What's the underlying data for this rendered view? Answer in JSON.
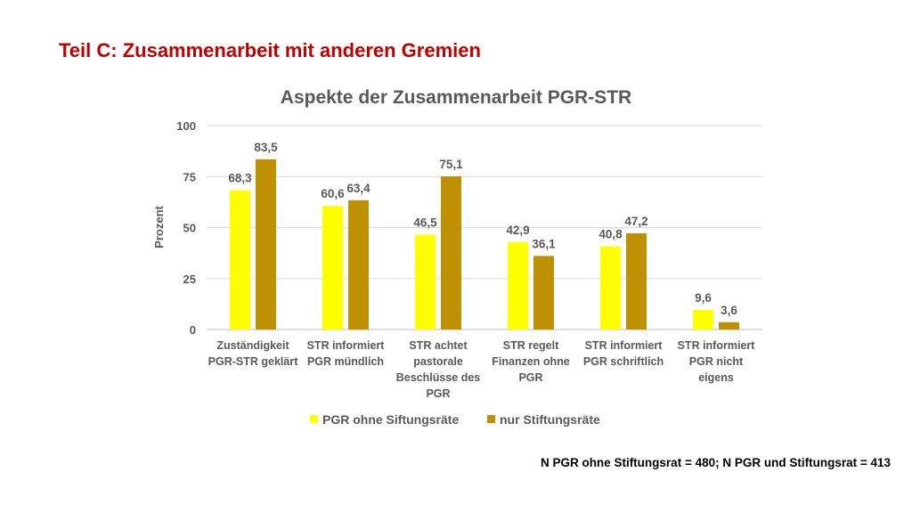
{
  "slide": {
    "title": "Teil C: Zusammenarbeit mit anderen Gremien",
    "footnote": "N PGR ohne Stiftungsrat = 480; N PGR und Stiftungsrat = 413"
  },
  "colors": {
    "title": "#c00000",
    "series_1": "#ffff00",
    "series_2": "#bf9000",
    "text": "#595959",
    "grid": "#d9d9d9"
  },
  "chart_data": {
    "type": "bar",
    "title": "Aspekte der Zusammenarbeit PGR-STR",
    "ylabel": "Prozent",
    "xlabel": "",
    "ylim": [
      0,
      100
    ],
    "yticks": [
      0,
      25,
      50,
      75,
      100
    ],
    "grid": true,
    "legend_position": "bottom",
    "categories": [
      [
        "Zuständigkeit",
        "PGR-STR geklärt"
      ],
      [
        "STR informiert",
        "PGR mündlich"
      ],
      [
        "STR achtet",
        "pastorale",
        "Beschlüsse des",
        "PGR"
      ],
      [
        "STR regelt",
        "Finanzen ohne",
        "PGR"
      ],
      [
        "STR informiert",
        "PGR schriftlich"
      ],
      [
        "STR informiert",
        "PGR nicht",
        "eigens"
      ]
    ],
    "series": [
      {
        "name": "PGR ohne Siftungsräte",
        "values": [
          68.3,
          60.6,
          46.5,
          42.9,
          40.8,
          9.6
        ],
        "labels": [
          "68,3",
          "60,6",
          "46,5",
          "42,9",
          "40,8",
          "9,6"
        ]
      },
      {
        "name": "nur Stiftungsräte",
        "values": [
          83.5,
          63.4,
          75.1,
          36.1,
          47.2,
          3.6
        ],
        "labels": [
          "83,5",
          "63,4",
          "75,1",
          "36,1",
          "47,2",
          "3,6"
        ]
      }
    ]
  }
}
